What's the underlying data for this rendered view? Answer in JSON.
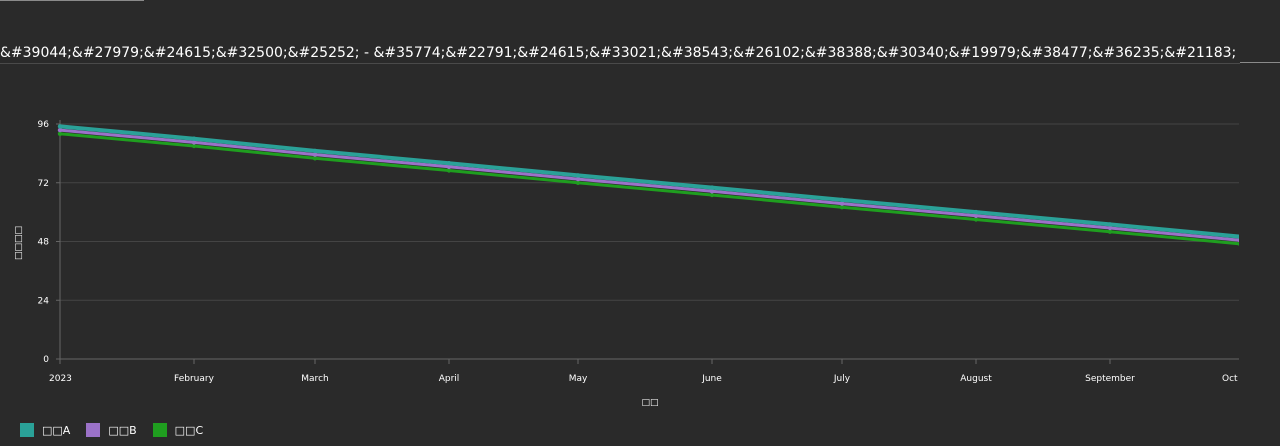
{
  "page": {
    "title": "&#39044;&#27979;&#24615;&#32500;&#25252; - &#35774;&#22791;&#24615;&#33021;&#38543;&#26102;&#38388;&#30340;&#19979;&#38477;&#36235;&#21183;"
  },
  "colors": {
    "background": "#2a2a2a",
    "grid": "#444444",
    "axis": "#666666"
  },
  "chart_data": {
    "type": "line",
    "categories": [
      "2023",
      "February",
      "March",
      "April",
      "May",
      "June",
      "July",
      "August",
      "September",
      "Oct"
    ],
    "xlabel": "□□",
    "ylabel": "□□□□",
    "ylim": [
      0,
      96
    ],
    "yticks": [
      0,
      24,
      48,
      72,
      96
    ],
    "grid": true,
    "legend_position": "bottom-left",
    "series": [
      {
        "name": "□□A",
        "color": "#2aa198",
        "values": [
          95,
          90,
          85,
          80,
          75,
          70,
          65,
          60,
          55,
          50
        ]
      },
      {
        "name": "□□B",
        "color": "#9b72c8",
        "values": [
          93.5,
          88.5,
          83.5,
          78.5,
          73.5,
          68.5,
          63.5,
          58.5,
          53.5,
          48.5
        ]
      },
      {
        "name": "□□C",
        "color": "#1f9e1f",
        "values": [
          92,
          87,
          82,
          77,
          72,
          67,
          62,
          57,
          52,
          47
        ]
      }
    ]
  }
}
